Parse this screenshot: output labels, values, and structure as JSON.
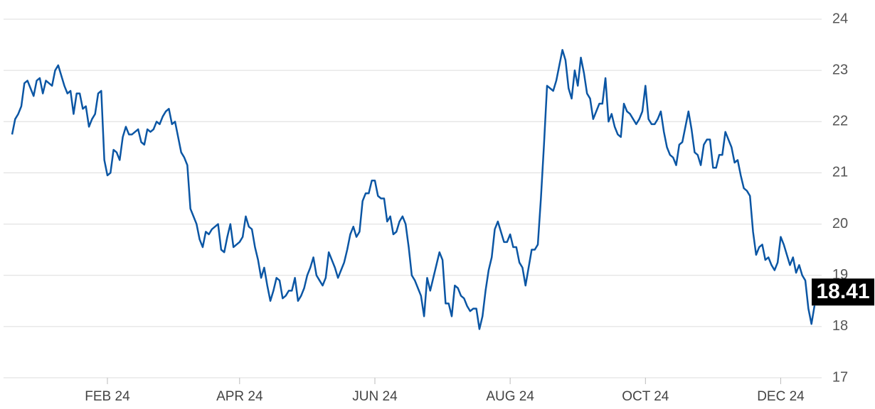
{
  "chart_data": {
    "type": "line",
    "categories": [
      null,
      null,
      null,
      null,
      null,
      null,
      null,
      null,
      null,
      null,
      null,
      null,
      null,
      null,
      null,
      null,
      null,
      null,
      null,
      null,
      null,
      null,
      null,
      null,
      null,
      null,
      null,
      null,
      null,
      null,
      null,
      "FEB 24",
      null,
      null,
      null,
      null,
      null,
      null,
      null,
      null,
      null,
      null,
      null,
      null,
      null,
      null,
      null,
      null,
      null,
      null,
      null,
      null,
      null,
      null,
      null,
      null,
      null,
      null,
      null,
      null,
      null,
      null,
      null,
      null,
      null,
      null,
      null,
      null,
      null,
      null,
      null,
      null,
      null,
      null,
      "APR 24",
      null,
      null,
      null,
      null,
      null,
      null,
      null,
      null,
      null,
      null,
      null,
      null,
      null,
      null,
      null,
      null,
      null,
      null,
      null,
      null,
      null,
      null,
      null,
      null,
      null,
      null,
      null,
      null,
      null,
      null,
      null,
      null,
      null,
      null,
      null,
      null,
      null,
      null,
      null,
      null,
      null,
      null,
      null,
      "JUN 24",
      null,
      null,
      null,
      null,
      null,
      null,
      null,
      null,
      null,
      null,
      null,
      null,
      null,
      null,
      null,
      null,
      null,
      null,
      null,
      null,
      null,
      null,
      null,
      null,
      null,
      null,
      null,
      null,
      null,
      null,
      null,
      null,
      null,
      null,
      null,
      null,
      null,
      null,
      null,
      null,
      null,
      null,
      null,
      "AUG 24",
      null,
      null,
      null,
      null,
      null,
      null,
      null,
      null,
      null,
      null,
      null,
      null,
      null,
      null,
      null,
      null,
      null,
      null,
      null,
      null,
      null,
      null,
      null,
      null,
      null,
      null,
      null,
      null,
      null,
      null,
      null,
      null,
      null,
      null,
      null,
      null,
      null,
      null,
      null,
      null,
      null,
      null,
      null,
      "OCT 24",
      null,
      null,
      null,
      null,
      null,
      null,
      null,
      null,
      null,
      null,
      null,
      null,
      null,
      null,
      null,
      null,
      null,
      null,
      null,
      null,
      null,
      null,
      null,
      null,
      null,
      null,
      null,
      null,
      null,
      null,
      null,
      null,
      null,
      null,
      null,
      null,
      null,
      null,
      null,
      null,
      null,
      null,
      null,
      "DEC 24",
      null,
      null,
      null,
      null,
      null,
      null,
      null,
      null,
      null,
      null,
      null
    ],
    "values": [
      21.75,
      22.05,
      22.15,
      22.3,
      22.75,
      22.8,
      22.65,
      22.5,
      22.8,
      22.85,
      22.55,
      22.8,
      22.75,
      22.7,
      23.0,
      23.1,
      22.9,
      22.7,
      22.55,
      22.6,
      22.15,
      22.55,
      22.55,
      22.25,
      22.3,
      21.9,
      22.05,
      22.15,
      22.55,
      22.6,
      21.25,
      20.95,
      21.0,
      21.45,
      21.4,
      21.25,
      21.7,
      21.9,
      21.75,
      21.75,
      21.8,
      21.85,
      21.6,
      21.55,
      21.85,
      21.8,
      21.85,
      22.0,
      21.95,
      22.1,
      22.2,
      22.25,
      21.95,
      22.0,
      21.7,
      21.4,
      21.3,
      21.15,
      20.3,
      20.15,
      20.0,
      19.7,
      19.55,
      19.85,
      19.8,
      19.9,
      19.95,
      20.0,
      19.5,
      19.45,
      19.75,
      20.0,
      19.55,
      19.6,
      19.65,
      19.75,
      20.15,
      19.95,
      19.9,
      19.55,
      19.3,
      18.95,
      19.15,
      18.8,
      18.5,
      18.7,
      18.95,
      18.9,
      18.55,
      18.6,
      18.7,
      18.7,
      18.95,
      18.5,
      18.6,
      18.75,
      19.0,
      19.15,
      19.35,
      19.0,
      18.9,
      18.8,
      18.95,
      19.45,
      19.3,
      19.15,
      18.95,
      19.1,
      19.25,
      19.5,
      19.8,
      19.95,
      19.75,
      19.85,
      20.45,
      20.6,
      20.6,
      20.85,
      20.85,
      20.55,
      20.5,
      20.5,
      20.05,
      20.15,
      19.8,
      19.85,
      20.05,
      20.15,
      20.0,
      19.55,
      19.0,
      18.9,
      18.75,
      18.6,
      18.2,
      18.95,
      18.7,
      18.95,
      19.2,
      19.45,
      19.3,
      18.45,
      18.45,
      18.2,
      18.8,
      18.75,
      18.6,
      18.55,
      18.4,
      18.3,
      18.35,
      18.35,
      17.95,
      18.2,
      18.7,
      19.1,
      19.35,
      19.9,
      20.05,
      19.85,
      19.65,
      19.65,
      19.8,
      19.55,
      19.55,
      19.25,
      19.15,
      18.8,
      19.15,
      19.5,
      19.5,
      19.6,
      20.5,
      21.55,
      22.7,
      22.65,
      22.6,
      22.8,
      23.1,
      23.4,
      23.2,
      22.65,
      22.45,
      23.0,
      22.7,
      23.25,
      22.95,
      22.55,
      22.45,
      22.05,
      22.2,
      22.35,
      22.35,
      22.85,
      22.0,
      22.15,
      21.9,
      21.75,
      21.7,
      22.35,
      22.2,
      22.15,
      22.05,
      21.95,
      22.05,
      22.2,
      22.7,
      22.05,
      21.95,
      21.95,
      22.05,
      22.2,
      21.8,
      21.5,
      21.35,
      21.3,
      21.15,
      21.55,
      21.6,
      21.9,
      22.2,
      21.85,
      21.4,
      21.35,
      21.15,
      21.55,
      21.65,
      21.65,
      21.1,
      21.1,
      21.35,
      21.35,
      21.8,
      21.65,
      21.5,
      21.2,
      21.25,
      20.95,
      20.7,
      20.65,
      20.55,
      19.85,
      19.4,
      19.55,
      19.6,
      19.3,
      19.35,
      19.2,
      19.1,
      19.25,
      19.75,
      19.6,
      19.4,
      19.2,
      19.35,
      19.05,
      19.2,
      19.0,
      18.9,
      18.35,
      18.05,
      18.41
    ],
    "color": "#0b56a4",
    "ylim": [
      17,
      24
    ],
    "yticks": [
      17,
      18,
      19,
      20,
      21,
      22,
      23,
      24
    ],
    "grid": true
  }
}
